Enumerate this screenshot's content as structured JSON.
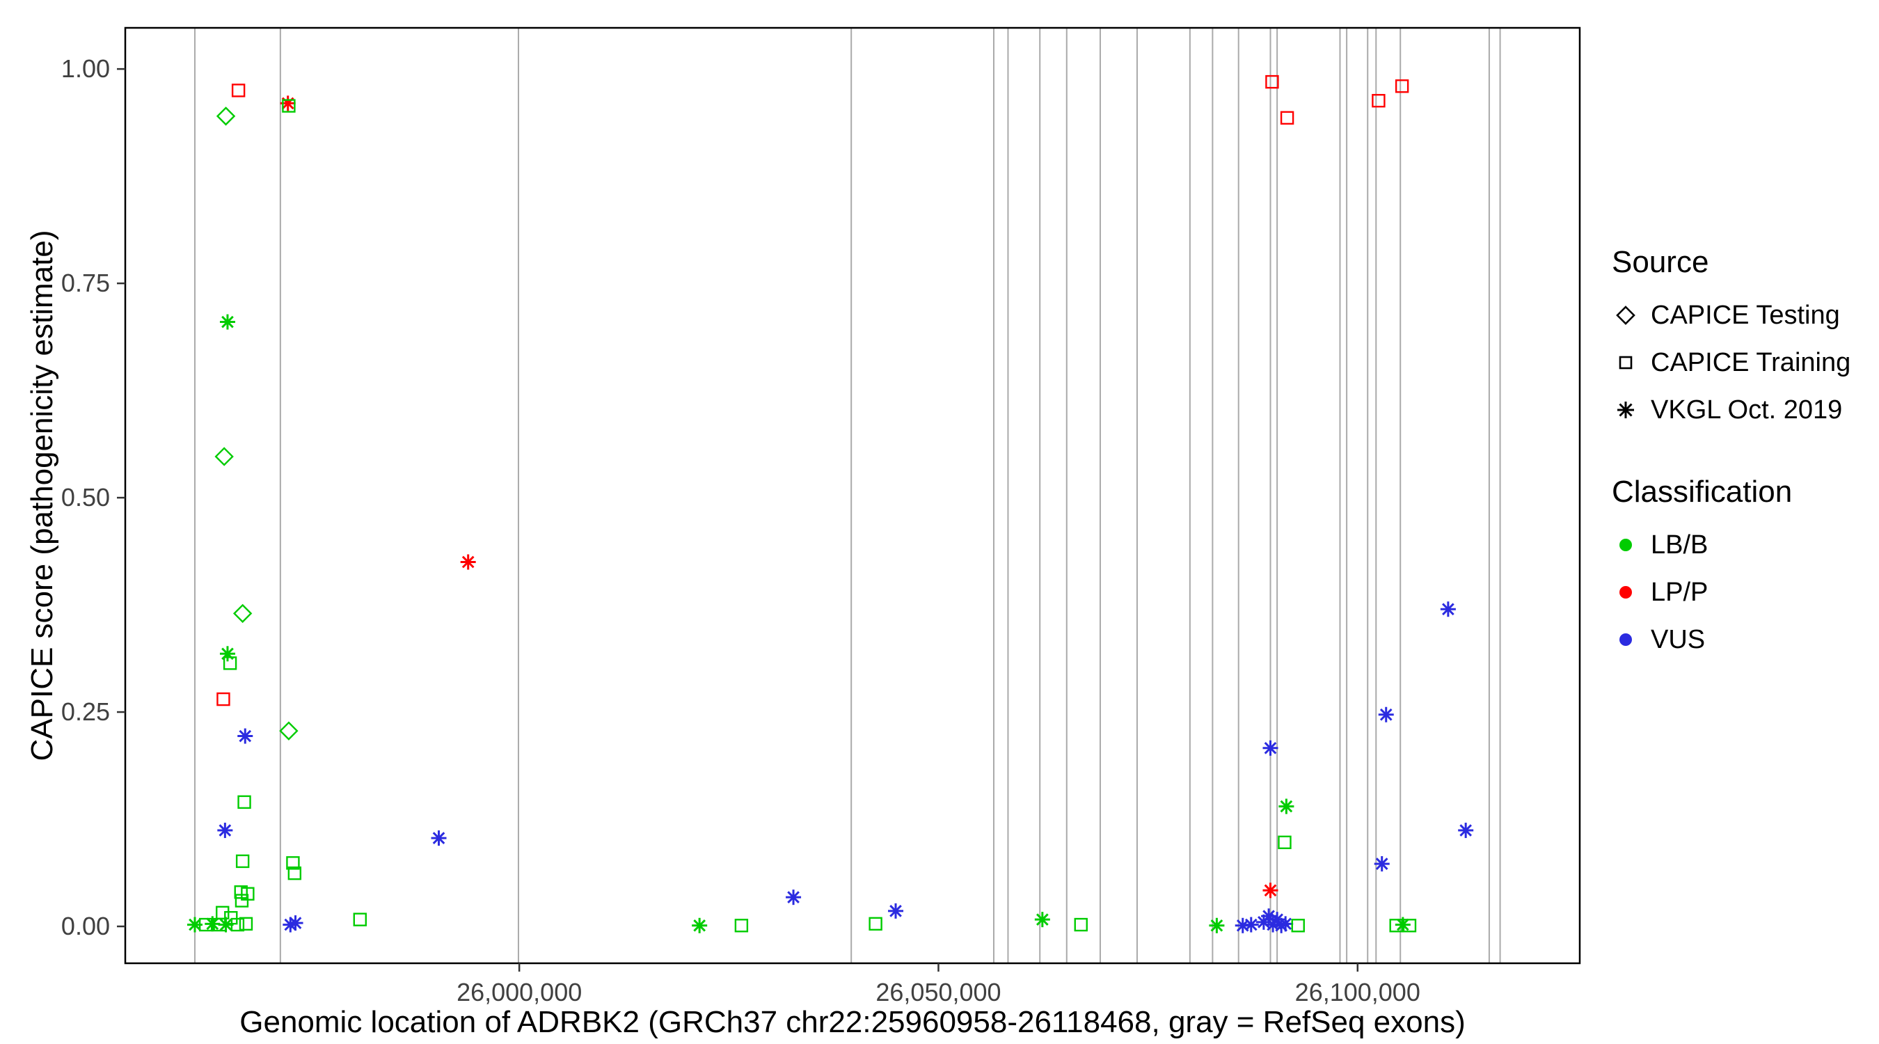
{
  "chart_data": {
    "type": "scatter",
    "xlabel": "Genomic location of ADRBK2 (GRCh37 chr22:25960958-26118468, gray = RefSeq exons)",
    "ylabel": "CAPICE score (pathogenicity estimate)",
    "xlim": [
      25953000,
      26126500
    ],
    "ylim": [
      -0.043,
      1.048
    ],
    "x_ticks": [
      {
        "value": 26000000,
        "label": "26,000,000"
      },
      {
        "value": 26050000,
        "label": "26,050,000"
      },
      {
        "value": 26100000,
        "label": "26,100,000"
      }
    ],
    "y_ticks": [
      {
        "value": 0.0,
        "label": "0.00"
      },
      {
        "value": 0.25,
        "label": "0.25"
      },
      {
        "value": 0.5,
        "label": "0.50"
      },
      {
        "value": 0.75,
        "label": "0.75"
      },
      {
        "value": 1.0,
        "label": "1.00"
      }
    ],
    "colors": {
      "LB/B": "#00CC00",
      "LP/P": "#FF0000",
      "VUS": "#2B2BE0",
      "exon": "#AAAAAA"
    },
    "exon_lines": [
      25961300,
      25971500,
      25999900,
      26039600,
      26056600,
      26058300,
      26062100,
      26065300,
      26069300,
      26073700,
      26080000,
      26082700,
      26085800,
      26089600,
      26090400,
      26097900,
      26098700,
      26101200,
      26102200,
      26105100,
      26115700,
      26117000
    ],
    "points_format": [
      "genomic_position",
      "capice_score",
      "source (testing=diamond, training=square, vkgl=asterisk)",
      "classification"
    ],
    "points": [
      [
        25966500,
        0.975,
        "training",
        "LP/P"
      ],
      [
        25965000,
        0.945,
        "testing",
        "LB/B"
      ],
      [
        25972400,
        0.96,
        "vkgl",
        "LP/P"
      ],
      [
        25972500,
        0.957,
        "training",
        "LB/B"
      ],
      [
        25965200,
        0.705,
        "vkgl",
        "LB/B"
      ],
      [
        25964800,
        0.548,
        "testing",
        "LB/B"
      ],
      [
        25967000,
        0.365,
        "testing",
        "LB/B"
      ],
      [
        25965200,
        0.318,
        "vkgl",
        "LB/B"
      ],
      [
        25965500,
        0.307,
        "training",
        "LB/B"
      ],
      [
        25964700,
        0.265,
        "training",
        "LP/P"
      ],
      [
        25972500,
        0.228,
        "testing",
        "LB/B"
      ],
      [
        25967300,
        0.222,
        "vkgl",
        "VUS"
      ],
      [
        25967200,
        0.145,
        "training",
        "LB/B"
      ],
      [
        25964900,
        0.112,
        "vkgl",
        "VUS"
      ],
      [
        25967000,
        0.076,
        "training",
        "LB/B"
      ],
      [
        25973000,
        0.074,
        "training",
        "LB/B"
      ],
      [
        25973200,
        0.062,
        "training",
        "LB/B"
      ],
      [
        25966800,
        0.04,
        "training",
        "LB/B"
      ],
      [
        25967600,
        0.038,
        "training",
        "LB/B"
      ],
      [
        25966900,
        0.03,
        "training",
        "LB/B"
      ],
      [
        25964600,
        0.016,
        "training",
        "LB/B"
      ],
      [
        25961300,
        0.002,
        "vkgl",
        "LB/B"
      ],
      [
        25962600,
        0.002,
        "training",
        "LB/B"
      ],
      [
        25963400,
        0.003,
        "vkgl",
        "LB/B"
      ],
      [
        25964300,
        0.002,
        "training",
        "LB/B"
      ],
      [
        25965000,
        0.002,
        "vkgl",
        "LB/B"
      ],
      [
        25965600,
        0.01,
        "training",
        "LB/B"
      ],
      [
        25966400,
        0.002,
        "training",
        "LB/B"
      ],
      [
        25967400,
        0.003,
        "training",
        "LB/B"
      ],
      [
        25972700,
        0.002,
        "vkgl",
        "VUS"
      ],
      [
        25973300,
        0.004,
        "vkgl",
        "VUS"
      ],
      [
        25981000,
        0.008,
        "training",
        "LB/B"
      ],
      [
        25993900,
        0.425,
        "vkgl",
        "LP/P"
      ],
      [
        25990400,
        0.103,
        "vkgl",
        "VUS"
      ],
      [
        26021500,
        0.001,
        "vkgl",
        "LB/B"
      ],
      [
        26026500,
        0.001,
        "training",
        "LB/B"
      ],
      [
        26032700,
        0.034,
        "vkgl",
        "VUS"
      ],
      [
        26042500,
        0.003,
        "training",
        "LB/B"
      ],
      [
        26044900,
        0.018,
        "vkgl",
        "VUS"
      ],
      [
        26062400,
        0.008,
        "vkgl",
        "LB/B"
      ],
      [
        26067000,
        0.002,
        "training",
        "LB/B"
      ],
      [
        26089800,
        0.985,
        "training",
        "LP/P"
      ],
      [
        26091600,
        0.943,
        "training",
        "LP/P"
      ],
      [
        26089600,
        0.208,
        "vkgl",
        "VUS"
      ],
      [
        26091500,
        0.14,
        "vkgl",
        "LB/B"
      ],
      [
        26091300,
        0.098,
        "training",
        "LB/B"
      ],
      [
        26089600,
        0.042,
        "vkgl",
        "LP/P"
      ],
      [
        26083200,
        0.001,
        "vkgl",
        "LB/B"
      ],
      [
        26086300,
        0.001,
        "vkgl",
        "VUS"
      ],
      [
        26087300,
        0.002,
        "vkgl",
        "VUS"
      ],
      [
        26088800,
        0.005,
        "vkgl",
        "VUS"
      ],
      [
        26089400,
        0.012,
        "vkgl",
        "VUS"
      ],
      [
        26089900,
        0.002,
        "vkgl",
        "VUS"
      ],
      [
        26090400,
        0.008,
        "vkgl",
        "VUS"
      ],
      [
        26090900,
        0.001,
        "vkgl",
        "VUS"
      ],
      [
        26091400,
        0.003,
        "vkgl",
        "VUS"
      ],
      [
        26092900,
        0.001,
        "training",
        "LB/B"
      ],
      [
        26102500,
        0.963,
        "training",
        "LP/P"
      ],
      [
        26105300,
        0.98,
        "training",
        "LP/P"
      ],
      [
        26103400,
        0.247,
        "vkgl",
        "VUS"
      ],
      [
        26102900,
        0.073,
        "vkgl",
        "VUS"
      ],
      [
        26110800,
        0.37,
        "vkgl",
        "VUS"
      ],
      [
        26112900,
        0.112,
        "vkgl",
        "VUS"
      ],
      [
        26104600,
        0.001,
        "training",
        "LB/B"
      ],
      [
        26105400,
        0.002,
        "vkgl",
        "LB/B"
      ],
      [
        26106200,
        0.001,
        "training",
        "LB/B"
      ]
    ],
    "legend": {
      "source": {
        "title": "Source",
        "items": [
          {
            "label": "CAPICE Testing",
            "marker": "diamond"
          },
          {
            "label": "CAPICE Training",
            "marker": "square"
          },
          {
            "label": "VKGL Oct. 2019",
            "marker": "asterisk"
          }
        ]
      },
      "classification": {
        "title": "Classification",
        "items": [
          {
            "label": "LB/B",
            "color": "#00CC00"
          },
          {
            "label": "LP/P",
            "color": "#FF0000"
          },
          {
            "label": "VUS",
            "color": "#2B2BE0"
          }
        ]
      }
    }
  }
}
